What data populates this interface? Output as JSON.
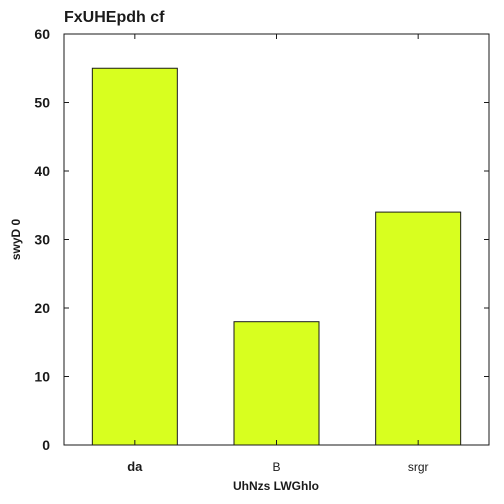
{
  "chart_data": {
    "type": "bar",
    "title": "FxUHEpdh cf",
    "xlabel": "UhNzs  LWGhlo",
    "ylabel": "swyD 0",
    "categories": [
      "da",
      "B",
      "srgr"
    ],
    "bold_categories": [
      "da"
    ],
    "values": [
      55,
      18,
      34
    ],
    "ylim": [
      0,
      60
    ],
    "yticks": [
      0,
      10,
      20,
      30,
      40,
      50,
      60
    ],
    "grid": false,
    "bar_color": "#d8ff1f",
    "edge_color": "#1a1a1a"
  }
}
